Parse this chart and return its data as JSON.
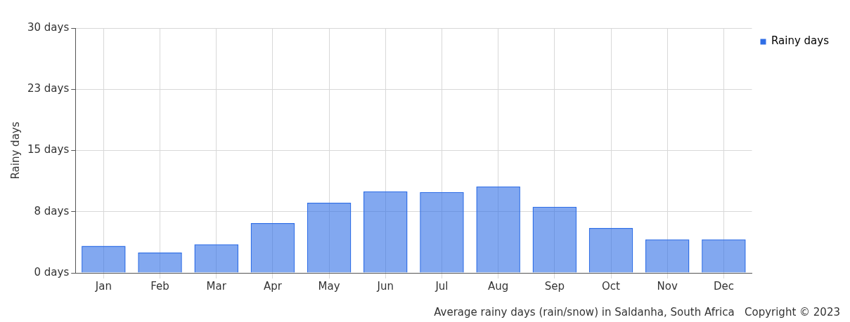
{
  "chart_data": {
    "type": "bar",
    "ylabel": "Rainy days",
    "categories": [
      "Jan",
      "Feb",
      "Mar",
      "Apr",
      "May",
      "Jun",
      "Jul",
      "Aug",
      "Sep",
      "Oct",
      "Nov",
      "Dec"
    ],
    "series": [
      {
        "name": "Rainy days",
        "color": "#2f6ee6",
        "values": [
          3.3,
          2.5,
          3.5,
          6.1,
          8.6,
          10.0,
          9.9,
          10.6,
          8.1,
          5.5,
          4.1,
          4.1
        ]
      }
    ],
    "ylim": [
      0,
      30
    ],
    "yticks": [
      {
        "value": 0,
        "label": "0 days"
      },
      {
        "value": 7.5,
        "label": "8 days"
      },
      {
        "value": 15,
        "label": "15 days"
      },
      {
        "value": 22.5,
        "label": "23 days"
      },
      {
        "value": 30,
        "label": "30 days"
      }
    ],
    "grid": true,
    "legend": "top right",
    "annotations": [
      "Average rainy days (rain/snow) in Saldanha, South Africa   Copyright © 2023"
    ]
  }
}
